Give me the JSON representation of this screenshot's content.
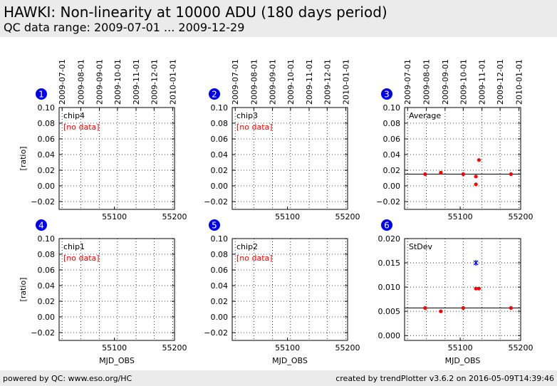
{
  "page": {
    "title": "HAWKI: Non-linearity at 10000 ADU (180 days period)",
    "subtitle": "QC data range: 2009-07-01 ... 2009-12-29",
    "footer_left": "powered by QC: www.eso.org/HC",
    "footer_right": "created by trendPlotter v3.6.2 on 2016-05-09T14:39:46"
  },
  "colors": {
    "data": "#ff0000",
    "outlier": "#0000ff",
    "badge": "#0000ee",
    "nodata": "#ff0000"
  },
  "chart_data": [
    {
      "id": 1,
      "type": "scatter",
      "label": "chip4",
      "nodata_text": "[no data]",
      "ylabel": "[ratio]",
      "xlabel": "",
      "xlim": [
        55008,
        55200
      ],
      "ylim": [
        -0.03,
        0.1
      ],
      "yticks": [
        -0.02,
        0.0,
        0.02,
        0.04,
        0.06,
        0.08,
        0.1
      ],
      "xticks": [
        55100,
        55200
      ],
      "date_ticks": [
        "2009-07-01",
        "2009-08-01",
        "2009-09-01",
        "2009-10-01",
        "2009-11-01",
        "2009-12-01",
        "2010-01-01"
      ],
      "points": [],
      "refline": null,
      "grid": true
    },
    {
      "id": 2,
      "type": "scatter",
      "label": "chip3",
      "nodata_text": "[no data]",
      "ylabel": "",
      "xlabel": "",
      "xlim": [
        55008,
        55200
      ],
      "ylim": [
        -0.03,
        0.1
      ],
      "yticks": [
        -0.02,
        0.0,
        0.02,
        0.04,
        0.06,
        0.08,
        0.1
      ],
      "xticks": [
        55100,
        55200
      ],
      "date_ticks": [
        "2009-07-01",
        "2009-08-01",
        "2009-09-01",
        "2009-10-01",
        "2009-11-01",
        "2009-12-01",
        "2010-01-01"
      ],
      "points": [],
      "refline": null,
      "grid": true
    },
    {
      "id": 3,
      "type": "scatter",
      "label": "Average",
      "nodata_text": "",
      "ylabel": "",
      "xlabel": "",
      "xlim": [
        55008,
        55200
      ],
      "ylim": [
        -0.03,
        0.1
      ],
      "yticks": [
        -0.02,
        0.0,
        0.02,
        0.04,
        0.06,
        0.08,
        0.1
      ],
      "xticks": [
        55100,
        55200
      ],
      "date_ticks": [
        "2009-07-01",
        "2009-08-01",
        "2009-09-01",
        "2009-10-01",
        "2009-11-01",
        "2009-12-01",
        "2010-01-01"
      ],
      "points": [
        {
          "x": 55042,
          "y": 0.015
        },
        {
          "x": 55068,
          "y": 0.017
        },
        {
          "x": 55105,
          "y": 0.015
        },
        {
          "x": 55126,
          "y": 0.012
        },
        {
          "x": 55126,
          "y": 0.002
        },
        {
          "x": 55131,
          "y": 0.033
        },
        {
          "x": 55184,
          "y": 0.015
        }
      ],
      "outliers": [],
      "refline": 0.015,
      "grid": true
    },
    {
      "id": 4,
      "type": "scatter",
      "label": "chip1",
      "nodata_text": "[no data]",
      "ylabel": "[ratio]",
      "xlabel": "MJD_OBS",
      "xlim": [
        55008,
        55200
      ],
      "ylim": [
        -0.03,
        0.1
      ],
      "yticks": [
        -0.02,
        0.0,
        0.02,
        0.04,
        0.06,
        0.08,
        0.1
      ],
      "xticks": [
        55100,
        55200
      ],
      "date_ticks": [],
      "points": [],
      "refline": null,
      "grid": true
    },
    {
      "id": 5,
      "type": "scatter",
      "label": "chip2",
      "nodata_text": "[no data]",
      "ylabel": "",
      "xlabel": "MJD_OBS",
      "xlim": [
        55008,
        55200
      ],
      "ylim": [
        -0.03,
        0.1
      ],
      "yticks": [
        -0.02,
        0.0,
        0.02,
        0.04,
        0.06,
        0.08,
        0.1
      ],
      "xticks": [
        55100,
        55200
      ],
      "date_ticks": [],
      "points": [],
      "refline": null,
      "grid": true
    },
    {
      "id": 6,
      "type": "scatter",
      "label": "StDev",
      "nodata_text": "",
      "ylabel": "",
      "xlabel": "MJD_OBS",
      "xlim": [
        55008,
        55200
      ],
      "ylim": [
        -0.001,
        0.02
      ],
      "yticks": [
        0.0,
        0.005,
        0.01,
        0.015,
        0.02
      ],
      "xticks": [
        55100,
        55200
      ],
      "date_ticks": [],
      "points": [
        {
          "x": 55042,
          "y": 0.0057
        },
        {
          "x": 55068,
          "y": 0.005
        },
        {
          "x": 55105,
          "y": 0.0057
        },
        {
          "x": 55126,
          "y": 0.0097
        },
        {
          "x": 55131,
          "y": 0.0097
        },
        {
          "x": 55184,
          "y": 0.0057
        }
      ],
      "outliers": [
        {
          "x": 55126,
          "y": 0.015
        }
      ],
      "refline": 0.0057,
      "grid": true
    }
  ]
}
